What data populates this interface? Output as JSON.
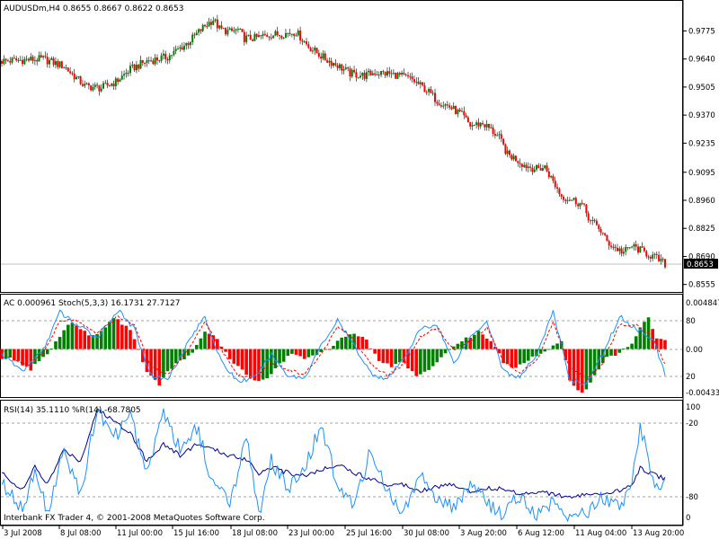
{
  "colors": {
    "background": "#ffffff",
    "border": "#000000",
    "bull": "#008000",
    "bear": "#ff0000",
    "price_line": "#c0c0c0",
    "stoch_main": "#1e90ff",
    "stoch_signal": "#ff0000",
    "rsi": "#1e90ff",
    "wpr": "#00008b",
    "level_dash": "#a0a0a0"
  },
  "main_chart": {
    "header": "AUDUSDm,H4  0.8655 0.8667 0.8622 0.8653",
    "current_price": 0.8653,
    "current_price_label": "0.8653",
    "y_range": [
      0.8532,
      0.9859
    ],
    "y_ticks": [
      "0.9775",
      "0.9640",
      "0.9505",
      "0.9370",
      "0.9235",
      "0.9095",
      "0.8960",
      "0.8825",
      "0.8690",
      "0.8555"
    ],
    "path": [
      [
        0,
        0.963
      ],
      [
        20,
        0.964
      ],
      [
        30,
        0.9605
      ],
      [
        40,
        0.951
      ],
      [
        48,
        0.95
      ],
      [
        55,
        0.953
      ],
      [
        62,
        0.959
      ],
      [
        70,
        0.963
      ],
      [
        80,
        0.965
      ],
      [
        90,
        0.972
      ],
      [
        98,
        0.98
      ],
      [
        102,
        0.983
      ],
      [
        105,
        0.9785
      ],
      [
        110,
        0.977
      ],
      [
        114,
        0.978
      ],
      [
        117,
        0.974
      ],
      [
        122,
        0.974
      ],
      [
        128,
        0.9755
      ],
      [
        135,
        0.976
      ],
      [
        142,
        0.977
      ],
      [
        148,
        0.97
      ],
      [
        156,
        0.964
      ],
      [
        162,
        0.961
      ],
      [
        168,
        0.957
      ],
      [
        175,
        0.956
      ],
      [
        180,
        0.9575
      ],
      [
        186,
        0.957
      ],
      [
        192,
        0.956
      ],
      [
        198,
        0.954
      ],
      [
        205,
        0.949
      ],
      [
        210,
        0.944
      ],
      [
        216,
        0.941
      ],
      [
        222,
        0.937
      ],
      [
        226,
        0.932
      ],
      [
        232,
        0.933
      ],
      [
        236,
        0.93
      ],
      [
        240,
        0.926
      ],
      [
        244,
        0.918
      ],
      [
        248,
        0.916
      ],
      [
        252,
        0.913
      ],
      [
        258,
        0.911
      ],
      [
        262,
        0.912
      ],
      [
        266,
        0.905
      ],
      [
        270,
        0.898
      ],
      [
        276,
        0.896
      ],
      [
        280,
        0.894
      ],
      [
        284,
        0.886
      ],
      [
        288,
        0.883
      ],
      [
        292,
        0.876
      ],
      [
        296,
        0.873
      ],
      [
        300,
        0.871
      ],
      [
        304,
        0.874
      ],
      [
        308,
        0.872
      ],
      [
        312,
        0.87
      ],
      [
        316,
        0.868
      ],
      [
        320,
        0.8653
      ]
    ]
  },
  "ac_stoch_panel": {
    "header": "AC 0.000961  Stoch(5,3,3) 16.1731 27.7127",
    "y_labels": [
      "0.004847",
      "80",
      "0.00",
      "20",
      "-0.00433"
    ],
    "ac_range": [
      -0.00433,
      0.004847
    ],
    "stoch_levels": [
      80,
      20
    ],
    "ac": [
      [
        0,
        -0.0008
      ],
      [
        6,
        -0.001
      ],
      [
        14,
        -0.002
      ],
      [
        18,
        -0.001
      ],
      [
        22,
        -0.0006
      ],
      [
        28,
        0.0012
      ],
      [
        34,
        0.0026
      ],
      [
        38,
        0.0018
      ],
      [
        44,
        0.0012
      ],
      [
        50,
        0.002
      ],
      [
        54,
        0.003
      ],
      [
        58,
        0.0024
      ],
      [
        62,
        0.0018
      ],
      [
        66,
        0.0
      ],
      [
        70,
        -0.0022
      ],
      [
        76,
        -0.0034
      ],
      [
        80,
        -0.002
      ],
      [
        86,
        -0.0012
      ],
      [
        92,
        -0.0004
      ],
      [
        98,
        0.0016
      ],
      [
        104,
        0.001
      ],
      [
        110,
        -0.001
      ],
      [
        116,
        -0.002
      ],
      [
        122,
        -0.003
      ],
      [
        128,
        -0.0026
      ],
      [
        134,
        -0.0014
      ],
      [
        140,
        -0.0004
      ],
      [
        146,
        -0.001
      ],
      [
        152,
        -0.0006
      ],
      [
        158,
        0.0
      ],
      [
        164,
        0.001
      ],
      [
        170,
        0.0014
      ],
      [
        176,
        0.0008
      ],
      [
        182,
        -0.001
      ],
      [
        188,
        -0.0016
      ],
      [
        194,
        -0.0012
      ],
      [
        200,
        -0.0026
      ],
      [
        206,
        -0.002
      ],
      [
        212,
        -0.0008
      ],
      [
        218,
        0.0002
      ],
      [
        224,
        0.001
      ],
      [
        230,
        0.0016
      ],
      [
        236,
        0.0008
      ],
      [
        242,
        -0.0012
      ],
      [
        248,
        -0.0018
      ],
      [
        254,
        -0.001
      ],
      [
        260,
        -0.0004
      ],
      [
        266,
        0.0002
      ],
      [
        270,
        0.0008
      ],
      [
        274,
        -0.003
      ],
      [
        280,
        -0.0042
      ],
      [
        286,
        -0.0026
      ],
      [
        292,
        -0.0008
      ],
      [
        298,
        -0.0004
      ],
      [
        304,
        0.0006
      ],
      [
        308,
        0.002
      ],
      [
        312,
        0.003
      ],
      [
        316,
        0.001
      ],
      [
        320,
        0.0009
      ]
    ],
    "stoch_main": [
      [
        0,
        40
      ],
      [
        10,
        20
      ],
      [
        20,
        45
      ],
      [
        28,
        90
      ],
      [
        36,
        75
      ],
      [
        46,
        60
      ],
      [
        56,
        92
      ],
      [
        64,
        70
      ],
      [
        72,
        15
      ],
      [
        80,
        10
      ],
      [
        90,
        55
      ],
      [
        98,
        85
      ],
      [
        106,
        30
      ],
      [
        114,
        8
      ],
      [
        122,
        12
      ],
      [
        130,
        40
      ],
      [
        138,
        15
      ],
      [
        146,
        12
      ],
      [
        154,
        50
      ],
      [
        162,
        80
      ],
      [
        170,
        50
      ],
      [
        178,
        18
      ],
      [
        186,
        10
      ],
      [
        194,
        35
      ],
      [
        202,
        70
      ],
      [
        210,
        75
      ],
      [
        218,
        30
      ],
      [
        226,
        60
      ],
      [
        234,
        80
      ],
      [
        242,
        20
      ],
      [
        250,
        12
      ],
      [
        258,
        40
      ],
      [
        266,
        90
      ],
      [
        274,
        10
      ],
      [
        282,
        5
      ],
      [
        290,
        40
      ],
      [
        298,
        85
      ],
      [
        306,
        70
      ],
      [
        314,
        60
      ],
      [
        320,
        16.1731
      ]
    ],
    "stoch_signal": [
      [
        0,
        45
      ],
      [
        10,
        28
      ],
      [
        20,
        40
      ],
      [
        28,
        80
      ],
      [
        36,
        80
      ],
      [
        46,
        65
      ],
      [
        56,
        85
      ],
      [
        64,
        75
      ],
      [
        72,
        25
      ],
      [
        80,
        15
      ],
      [
        90,
        45
      ],
      [
        98,
        78
      ],
      [
        106,
        45
      ],
      [
        114,
        15
      ],
      [
        122,
        12
      ],
      [
        130,
        30
      ],
      [
        138,
        22
      ],
      [
        146,
        16
      ],
      [
        154,
        40
      ],
      [
        162,
        72
      ],
      [
        170,
        58
      ],
      [
        178,
        28
      ],
      [
        186,
        15
      ],
      [
        194,
        28
      ],
      [
        202,
        60
      ],
      [
        210,
        72
      ],
      [
        218,
        45
      ],
      [
        226,
        55
      ],
      [
        234,
        72
      ],
      [
        242,
        32
      ],
      [
        250,
        18
      ],
      [
        258,
        32
      ],
      [
        266,
        78
      ],
      [
        274,
        25
      ],
      [
        282,
        10
      ],
      [
        290,
        30
      ],
      [
        298,
        75
      ],
      [
        306,
        75
      ],
      [
        314,
        62
      ],
      [
        320,
        27.7127
      ]
    ]
  },
  "rsi_panel": {
    "header": "RSI(14) 35.1110  %R(14) -68.7805",
    "y_labels": [
      "100",
      "-20",
      "-80",
      "0"
    ],
    "levels": [
      -20,
      -80
    ],
    "rsi": [
      [
        0,
        40
      ],
      [
        10,
        25
      ],
      [
        16,
        45
      ],
      [
        22,
        30
      ],
      [
        30,
        60
      ],
      [
        38,
        50
      ],
      [
        46,
        95
      ],
      [
        54,
        85
      ],
      [
        62,
        75
      ],
      [
        70,
        50
      ],
      [
        78,
        65
      ],
      [
        86,
        55
      ],
      [
        94,
        65
      ],
      [
        102,
        60
      ],
      [
        110,
        55
      ],
      [
        118,
        52
      ],
      [
        124,
        40
      ],
      [
        130,
        45
      ],
      [
        138,
        40
      ],
      [
        146,
        38
      ],
      [
        154,
        42
      ],
      [
        162,
        48
      ],
      [
        170,
        40
      ],
      [
        178,
        35
      ],
      [
        186,
        30
      ],
      [
        194,
        30
      ],
      [
        202,
        25
      ],
      [
        210,
        28
      ],
      [
        218,
        30
      ],
      [
        226,
        24
      ],
      [
        234,
        27
      ],
      [
        242,
        26
      ],
      [
        250,
        22
      ],
      [
        258,
        24
      ],
      [
        266,
        22
      ],
      [
        274,
        18
      ],
      [
        282,
        22
      ],
      [
        290,
        20
      ],
      [
        298,
        25
      ],
      [
        304,
        30
      ],
      [
        308,
        45
      ],
      [
        312,
        40
      ],
      [
        320,
        35.111
      ]
    ],
    "wpr": [
      [
        0,
        -70
      ],
      [
        10,
        -90
      ],
      [
        16,
        -60
      ],
      [
        22,
        -95
      ],
      [
        30,
        -40
      ],
      [
        38,
        -80
      ],
      [
        46,
        -5
      ],
      [
        54,
        -30
      ],
      [
        62,
        -10
      ],
      [
        70,
        -60
      ],
      [
        78,
        -5
      ],
      [
        86,
        -40
      ],
      [
        94,
        -20
      ],
      [
        102,
        -70
      ],
      [
        110,
        -85
      ],
      [
        118,
        -30
      ],
      [
        124,
        -95
      ],
      [
        130,
        -50
      ],
      [
        138,
        -75
      ],
      [
        146,
        -55
      ],
      [
        154,
        -20
      ],
      [
        162,
        -70
      ],
      [
        170,
        -90
      ],
      [
        178,
        -40
      ],
      [
        186,
        -75
      ],
      [
        194,
        -95
      ],
      [
        202,
        -60
      ],
      [
        210,
        -85
      ],
      [
        218,
        -90
      ],
      [
        226,
        -70
      ],
      [
        234,
        -85
      ],
      [
        242,
        -95
      ],
      [
        250,
        -80
      ],
      [
        258,
        -95
      ],
      [
        266,
        -85
      ],
      [
        274,
        -98
      ],
      [
        282,
        -95
      ],
      [
        290,
        -80
      ],
      [
        298,
        -90
      ],
      [
        304,
        -70
      ],
      [
        308,
        -20
      ],
      [
        312,
        -50
      ],
      [
        316,
        -75
      ],
      [
        320,
        -68.7805
      ]
    ]
  },
  "x_axis": {
    "labels": [
      "3 Jul 2008",
      "8 Jul 08:00",
      "11 Jul 00:00",
      "15 Jul 16:00",
      "18 Jul 08:00",
      "23 Jul 00:00",
      "25 Jul 16:00",
      "30 Jul 08:00",
      "3 Aug 20:00",
      "6 Aug 12:00",
      "11 Aug 04:00",
      "13 Aug 20:00"
    ]
  },
  "footer": {
    "copyright": "Interbank FX Trader 4, © 2001-2008 MetaQuotes Software Corp."
  }
}
